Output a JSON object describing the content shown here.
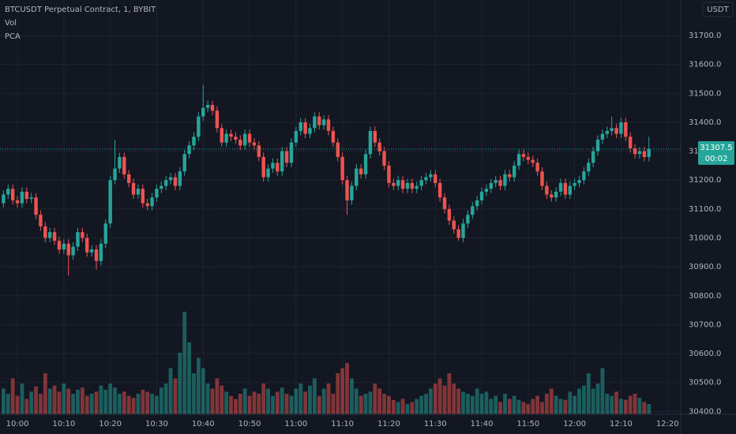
{
  "chart_data": {
    "type": "candlestick",
    "title": "BTCUSDT Perpetual Contract, 1, BYBIT",
    "indicators": [
      "Vol",
      "PCA"
    ],
    "currency": "USDT",
    "countdown": "00:02",
    "last_price": 31307.5,
    "up_color": "#26a69a",
    "down_color": "#ef5350",
    "grid": true,
    "ylim": [
      30390,
      31823
    ],
    "yticks": [
      {
        "value": 30400,
        "label": "30400.0"
      },
      {
        "value": 30500,
        "label": "30500.0"
      },
      {
        "value": 30600,
        "label": "30600.0"
      },
      {
        "value": 30700,
        "label": "30700.0"
      },
      {
        "value": 30800,
        "label": "30800.0"
      },
      {
        "value": 30900,
        "label": "30900.0"
      },
      {
        "value": 31000,
        "label": "31000.0"
      },
      {
        "value": 31100,
        "label": "31100.0"
      },
      {
        "value": 31200,
        "label": "31200.0"
      },
      {
        "value": 31300,
        "label": "31300.0"
      },
      {
        "value": 31400,
        "label": "31400.0"
      },
      {
        "value": 31500,
        "label": "31500.0"
      },
      {
        "value": 31600,
        "label": "31600.0"
      },
      {
        "value": 31700,
        "label": "31700.0"
      }
    ],
    "xticks": [
      "10:00",
      "10:10",
      "10:20",
      "10:30",
      "10:40",
      "10:50",
      "11:00",
      "11:10",
      "11:20",
      "11:30",
      "11:40",
      "11:50",
      "12:00",
      "12:10",
      "12:20"
    ],
    "x": [
      "09:57",
      "09:58",
      "09:59",
      "10:00",
      "10:01",
      "10:02",
      "10:03",
      "10:04",
      "10:05",
      "10:06",
      "10:07",
      "10:08",
      "10:09",
      "10:10",
      "10:11",
      "10:12",
      "10:13",
      "10:14",
      "10:15",
      "10:16",
      "10:17",
      "10:18",
      "10:19",
      "10:20",
      "10:21",
      "10:22",
      "10:23",
      "10:24",
      "10:25",
      "10:26",
      "10:27",
      "10:28",
      "10:29",
      "10:30",
      "10:31",
      "10:32",
      "10:33",
      "10:34",
      "10:35",
      "10:36",
      "10:37",
      "10:38",
      "10:39",
      "10:40",
      "10:41",
      "10:42",
      "10:43",
      "10:44",
      "10:45",
      "10:46",
      "10:47",
      "10:48",
      "10:49",
      "10:50",
      "10:51",
      "10:52",
      "10:53",
      "10:54",
      "10:55",
      "10:56",
      "10:57",
      "10:58",
      "10:59",
      "11:00",
      "11:01",
      "11:02",
      "11:03",
      "11:04",
      "11:05",
      "11:06",
      "11:07",
      "11:08",
      "11:09",
      "11:10",
      "11:11",
      "11:12",
      "11:13",
      "11:14",
      "11:15",
      "11:16",
      "11:17",
      "11:18",
      "11:19",
      "11:20",
      "11:21",
      "11:22",
      "11:23",
      "11:24",
      "11:25",
      "11:26",
      "11:27",
      "11:28",
      "11:29",
      "11:30",
      "11:31",
      "11:32",
      "11:33",
      "11:34",
      "11:35",
      "11:36",
      "11:37",
      "11:38",
      "11:39",
      "11:40",
      "11:41",
      "11:42",
      "11:43",
      "11:44",
      "11:45",
      "11:46",
      "11:47",
      "11:48",
      "11:49",
      "11:50",
      "11:51",
      "11:52",
      "11:53",
      "11:54",
      "11:55",
      "11:56",
      "11:57",
      "11:58",
      "11:59",
      "12:00",
      "12:01",
      "12:02",
      "12:03",
      "12:04",
      "12:05",
      "12:06",
      "12:07",
      "12:08",
      "12:09",
      "12:10",
      "12:11",
      "12:12",
      "12:13",
      "12:14",
      "12:15",
      "12:16"
    ],
    "open": [
      31120,
      31150,
      31170,
      31130,
      31120,
      31160,
      31135,
      31140,
      31080,
      31040,
      31000,
      31020,
      30990,
      30960,
      30980,
      30940,
      30970,
      31020,
      31000,
      30950,
      30960,
      30920,
      30980,
      31050,
      31200,
      31240,
      31280,
      31220,
      31190,
      31150,
      31170,
      31120,
      31110,
      31140,
      31170,
      31180,
      31200,
      31210,
      31180,
      31230,
      31290,
      31320,
      31350,
      31420,
      31450,
      31460,
      31440,
      31380,
      31330,
      31360,
      31350,
      31340,
      31320,
      31360,
      31330,
      31320,
      31280,
      31210,
      31240,
      31260,
      31230,
      31300,
      31260,
      31330,
      31370,
      31400,
      31360,
      31380,
      31420,
      31390,
      31410,
      31370,
      31330,
      31280,
      31200,
      31130,
      31180,
      31240,
      31220,
      31290,
      31370,
      31330,
      31300,
      31250,
      31190,
      31180,
      31200,
      31170,
      31190,
      31170,
      31180,
      31200,
      31210,
      31220,
      31190,
      31140,
      31100,
      31060,
      31030,
      31000,
      31050,
      31080,
      31110,
      31130,
      31160,
      31170,
      31190,
      31200,
      31180,
      31220,
      31210,
      31250,
      31290,
      31280,
      31270,
      31260,
      31230,
      31180,
      31150,
      31140,
      31160,
      31190,
      31150,
      31180,
      31190,
      31200,
      31230,
      31260,
      31300,
      31340,
      31360,
      31370,
      31380,
      31360,
      31400,
      31350,
      31310,
      31290,
      31300,
      31280
    ],
    "high": [
      31165,
      31185,
      31185,
      31145,
      31175,
      31175,
      31155,
      31155,
      31095,
      31055,
      31035,
      31035,
      31005,
      30995,
      30995,
      30985,
      31035,
      31035,
      31015,
      30975,
      30975,
      30995,
      31065,
      31215,
      31340,
      31295,
      31295,
      31235,
      31205,
      31185,
      31185,
      31135,
      31155,
      31185,
      31195,
      31215,
      31225,
      31225,
      31245,
      31305,
      31335,
      31365,
      31435,
      31530,
      31475,
      31475,
      31455,
      31395,
      31375,
      31375,
      31365,
      31355,
      31375,
      31375,
      31345,
      31335,
      31295,
      31255,
      31275,
      31275,
      31315,
      31315,
      31345,
      31385,
      31415,
      31415,
      31395,
      31435,
      31435,
      31425,
      31425,
      31385,
      31345,
      31295,
      31215,
      31195,
      31255,
      31255,
      31305,
      31385,
      31385,
      31345,
      31315,
      31265,
      31205,
      31215,
      31215,
      31205,
      31205,
      31195,
      31215,
      31225,
      31235,
      31235,
      31205,
      31155,
      31115,
      31075,
      31045,
      31065,
      31095,
      31125,
      31145,
      31175,
      31185,
      31205,
      31215,
      31215,
      31235,
      31235,
      31265,
      31305,
      31305,
      31295,
      31285,
      31275,
      31245,
      31195,
      31165,
      31175,
      31205,
      31205,
      31195,
      31205,
      31215,
      31245,
      31275,
      31315,
      31355,
      31375,
      31385,
      31420,
      31395,
      31415,
      31415,
      31365,
      31325,
      31315,
      31315,
      31350
    ],
    "low": [
      31105,
      31135,
      31115,
      31105,
      31105,
      31120,
      31120,
      31065,
      31025,
      30985,
      30985,
      30975,
      30945,
      30945,
      30870,
      30925,
      30955,
      30985,
      30935,
      30935,
      30890,
      30905,
      30965,
      31035,
      31185,
      31225,
      31205,
      31175,
      31135,
      31135,
      31105,
      31095,
      31095,
      31125,
      31155,
      31165,
      31185,
      31165,
      31165,
      31215,
      31275,
      31305,
      31335,
      31405,
      31435,
      31425,
      31365,
      31315,
      31315,
      31335,
      31325,
      31305,
      31305,
      31315,
      31305,
      31265,
      31195,
      31195,
      31225,
      31215,
      31215,
      31245,
      31245,
      31315,
      31355,
      31345,
      31345,
      31365,
      31375,
      31375,
      31355,
      31315,
      31265,
      31185,
      31080,
      31115,
      31165,
      31205,
      31205,
      31275,
      31315,
      31285,
      31235,
      31175,
      31165,
      31165,
      31155,
      31155,
      31155,
      31155,
      31165,
      31185,
      31195,
      31175,
      31125,
      31085,
      31045,
      31015,
      30990,
      30985,
      31035,
      31065,
      31095,
      31115,
      31145,
      31155,
      31175,
      31165,
      31165,
      31195,
      31195,
      31235,
      31265,
      31255,
      31245,
      31215,
      31165,
      31135,
      31125,
      31125,
      31145,
      31135,
      31135,
      31165,
      31175,
      31185,
      31215,
      31245,
      31285,
      31325,
      31345,
      31355,
      31345,
      31345,
      31335,
      31295,
      31275,
      31275,
      31265,
      31265
    ],
    "close": [
      31150,
      31170,
      31130,
      31120,
      31160,
      31135,
      31140,
      31080,
      31040,
      31000,
      31020,
      30990,
      30960,
      30980,
      30940,
      30970,
      31020,
      31000,
      30950,
      30960,
      30920,
      30980,
      31050,
      31200,
      31240,
      31280,
      31220,
      31190,
      31150,
      31170,
      31120,
      31110,
      31140,
      31170,
      31180,
      31200,
      31210,
      31180,
      31230,
      31290,
      31320,
      31350,
      31420,
      31450,
      31460,
      31440,
      31380,
      31330,
      31360,
      31350,
      31340,
      31320,
      31360,
      31330,
      31320,
      31280,
      31210,
      31240,
      31260,
      31230,
      31300,
      31260,
      31330,
      31370,
      31400,
      31360,
      31380,
      31420,
      31390,
      31410,
      31370,
      31330,
      31280,
      31200,
      31130,
      31180,
      31240,
      31220,
      31290,
      31370,
      31330,
      31300,
      31250,
      31190,
      31180,
      31200,
      31170,
      31190,
      31170,
      31180,
      31200,
      31210,
      31220,
      31190,
      31140,
      31100,
      31060,
      31030,
      31000,
      31050,
      31080,
      31110,
      31130,
      31160,
      31170,
      31190,
      31200,
      31180,
      31220,
      31210,
      31250,
      31290,
      31280,
      31270,
      31260,
      31230,
      31180,
      31150,
      31140,
      31160,
      31190,
      31150,
      31180,
      31190,
      31200,
      31230,
      31260,
      31300,
      31340,
      31360,
      31370,
      31380,
      31360,
      31400,
      31350,
      31310,
      31290,
      31300,
      31280,
      31307.5
    ],
    "volume": [
      25,
      20,
      35,
      18,
      30,
      15,
      22,
      27,
      20,
      40,
      25,
      28,
      22,
      30,
      25,
      20,
      24,
      26,
      18,
      20,
      22,
      28,
      24,
      30,
      26,
      20,
      22,
      18,
      16,
      20,
      24,
      22,
      20,
      18,
      26,
      30,
      45,
      35,
      60,
      100,
      70,
      40,
      55,
      45,
      30,
      25,
      35,
      28,
      22,
      18,
      15,
      20,
      25,
      18,
      22,
      20,
      30,
      25,
      18,
      22,
      26,
      20,
      18,
      25,
      30,
      22,
      28,
      35,
      18,
      25,
      30,
      20,
      40,
      45,
      50,
      35,
      25,
      18,
      20,
      22,
      30,
      25,
      20,
      18,
      14,
      12,
      15,
      10,
      12,
      15,
      18,
      20,
      25,
      30,
      35,
      28,
      40,
      30,
      25,
      22,
      20,
      18,
      25,
      20,
      22,
      15,
      18,
      12,
      20,
      15,
      18,
      14,
      12,
      10,
      15,
      18,
      12,
      20,
      25,
      18,
      15,
      14,
      22,
      18,
      25,
      28,
      40,
      25,
      30,
      45,
      20,
      18,
      22,
      15,
      14,
      18,
      20,
      16,
      12,
      10
    ]
  }
}
